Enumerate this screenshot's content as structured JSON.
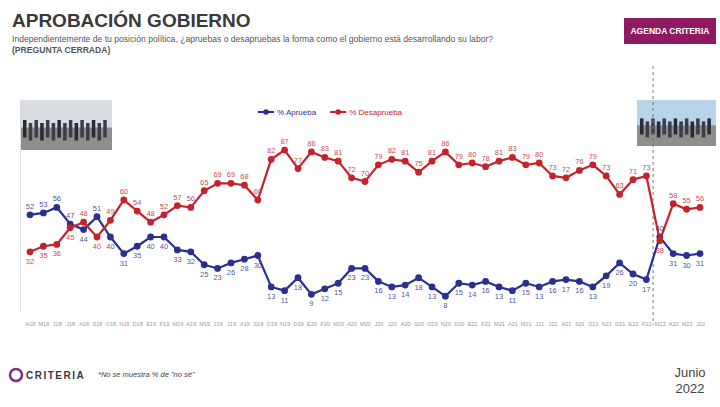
{
  "chart_data": {
    "type": "line",
    "title": "APROBACIÓN GOBIERNO",
    "subtitle": "Independientemente de tu posición política, ¿apruebas o desapruebas la forma como el gobierno está desarrollando su labor?",
    "annotations": [
      "(PREGUNTA CERRADA)",
      "AGENDA CRITERIA",
      "CRITERIA",
      "*No se muestra % de \"no sé\"",
      "Junio",
      "2022"
    ],
    "categories": [
      "A18",
      "M18",
      "J18",
      "J18",
      "A18",
      "S18",
      "O18",
      "N18",
      "D18",
      "E19",
      "F19",
      "M19",
      "A19",
      "M19",
      "J19",
      "J19",
      "A19",
      "S19",
      "O19",
      "N19",
      "D19",
      "E20",
      "F20",
      "M20",
      "A20",
      "M20",
      "J20",
      "J20",
      "A20",
      "S20",
      "O20",
      "N20",
      "D20",
      "E21",
      "F21",
      "M21",
      "A21",
      "M21",
      "J21",
      "J21",
      "A21",
      "S21",
      "O21",
      "N21",
      "D21",
      "E22",
      "F22",
      "M22",
      "A22",
      "M22",
      "J22"
    ],
    "series": [
      {
        "name": "% Aprueba",
        "color": "#2b2f8f",
        "marker": "circle",
        "values": [
          52,
          53,
          56,
          47,
          44,
          51,
          40,
          31,
          35,
          40,
          40,
          33,
          32,
          25,
          23,
          26,
          28,
          30,
          13,
          11,
          18,
          9,
          12,
          15,
          23,
          23,
          16,
          13,
          14,
          18,
          13,
          8,
          15,
          14,
          16,
          13,
          11,
          15,
          13,
          16,
          17,
          16,
          13,
          19,
          26,
          20,
          17,
          40,
          31,
          30,
          31
        ]
      },
      {
        "name": "% Desaprueba",
        "color": "#c4232d",
        "marker": "circle",
        "values": [
          32,
          35,
          36,
          45,
          48,
          40,
          49,
          60,
          54,
          48,
          52,
          57,
          56,
          65,
          69,
          69,
          68,
          60,
          82,
          87,
          77,
          86,
          83,
          81,
          72,
          70,
          79,
          82,
          81,
          75,
          81,
          86,
          79,
          80,
          78,
          81,
          83,
          79,
          80,
          73,
          72,
          76,
          79,
          73,
          63,
          71,
          73,
          38,
          58,
          55,
          56
        ]
      }
    ],
    "ylim": [
      0,
      100
    ],
    "yticks": [],
    "tick_labels": "x",
    "data_labels": true,
    "legend": "top",
    "grid": false
  }
}
